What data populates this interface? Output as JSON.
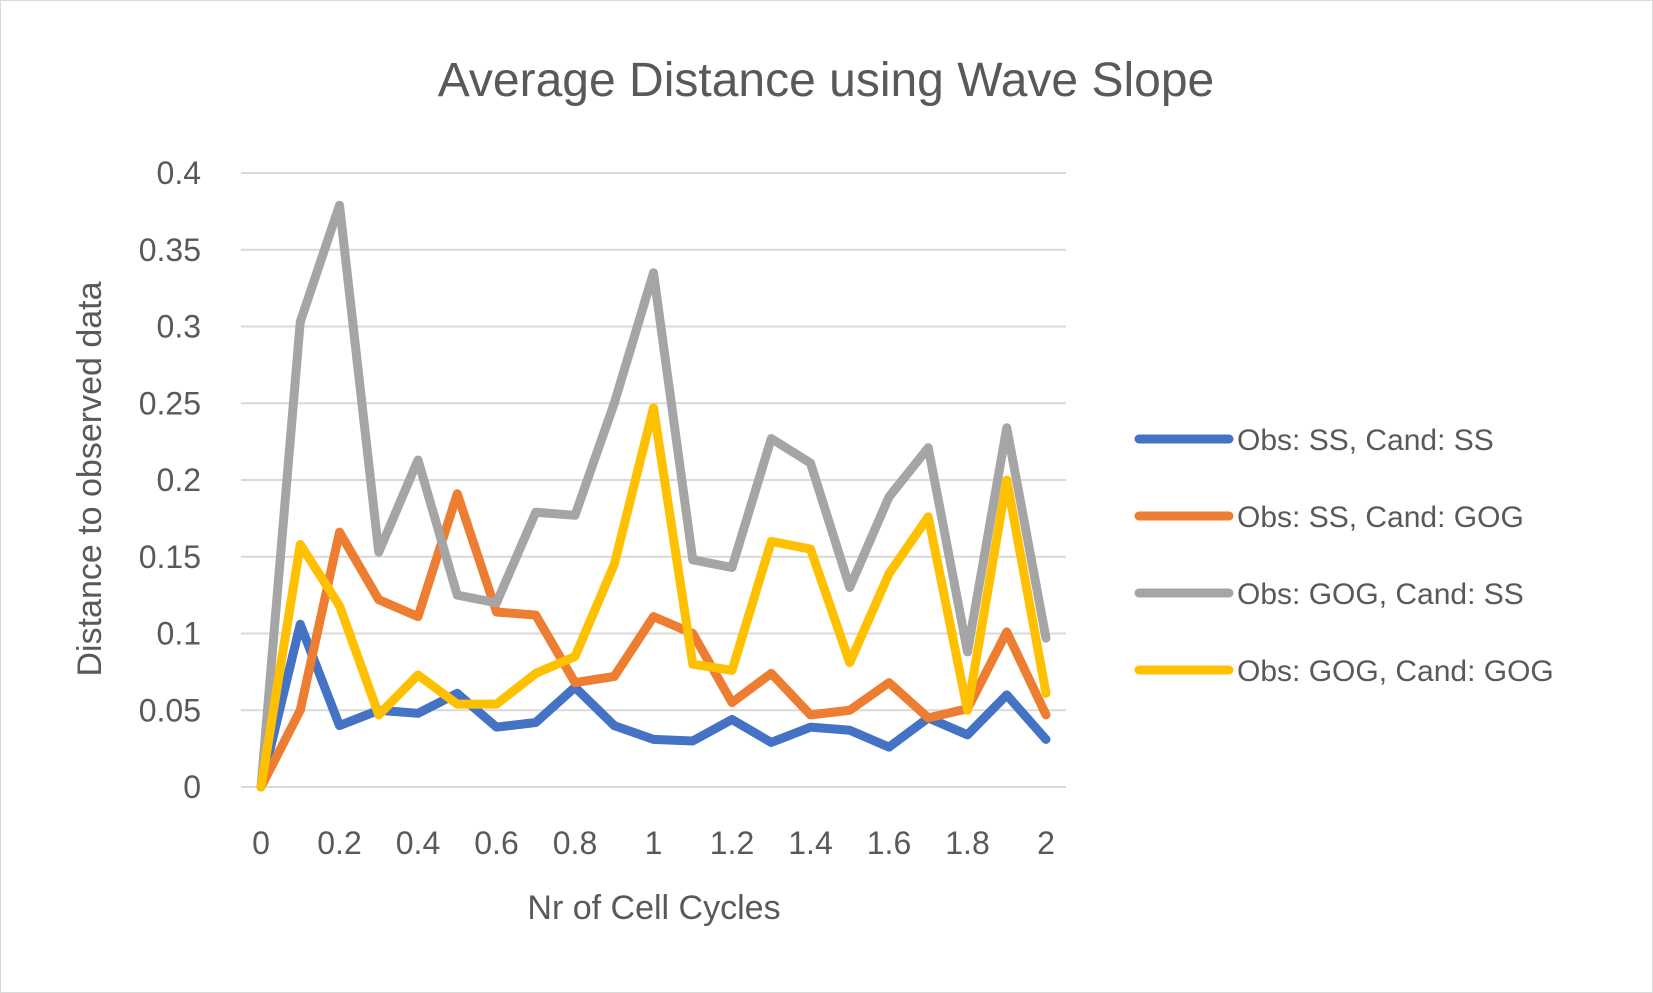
{
  "chart_data": {
    "type": "line",
    "title": "Average Distance using Wave Slope",
    "xlabel": "Nr of Cell Cycles",
    "ylabel": "Distance to observed data",
    "xlim": [
      0,
      2
    ],
    "ylim": [
      0,
      0.4
    ],
    "x_ticks": [
      "0",
      "0.2",
      "0.4",
      "0.6",
      "0.8",
      "1",
      "1.2",
      "1.4",
      "1.6",
      "1.8",
      "2"
    ],
    "y_ticks": [
      "0",
      "0.05",
      "0.1",
      "0.15",
      "0.2",
      "0.25",
      "0.3",
      "0.35",
      "0.4"
    ],
    "grid": "horizontal",
    "legend_position": "right",
    "x": [
      0,
      0.1,
      0.2,
      0.3,
      0.4,
      0.5,
      0.6,
      0.7,
      0.8,
      0.9,
      1.0,
      1.1,
      1.2,
      1.3,
      1.4,
      1.5,
      1.6,
      1.7,
      1.8,
      1.9,
      2.0
    ],
    "series": [
      {
        "name": "Obs: SS, Cand: SS",
        "color": "#4472c4",
        "values": [
          0,
          0.106,
          0.04,
          0.05,
          0.048,
          0.061,
          0.039,
          0.042,
          0.065,
          0.04,
          0.031,
          0.03,
          0.044,
          0.029,
          0.039,
          0.037,
          0.026,
          0.045,
          0.034,
          0.06,
          0.031
        ]
      },
      {
        "name": "Obs: SS, Cand: GOG",
        "color": "#ed7d31",
        "values": [
          0,
          0.05,
          0.166,
          0.122,
          0.111,
          0.191,
          0.114,
          0.112,
          0.068,
          0.072,
          0.111,
          0.1,
          0.055,
          0.074,
          0.047,
          0.05,
          0.068,
          0.045,
          0.051,
          0.101,
          0.047
        ]
      },
      {
        "name": "Obs: GOG, Cand: SS",
        "color": "#a5a5a5",
        "values": [
          0,
          0.303,
          0.379,
          0.153,
          0.213,
          0.125,
          0.12,
          0.179,
          0.177,
          0.25,
          0.335,
          0.148,
          0.143,
          0.227,
          0.211,
          0.13,
          0.189,
          0.221,
          0.088,
          0.234,
          0.097
        ]
      },
      {
        "name": "Obs: GOG, Cand: GOG",
        "color": "#ffc000",
        "values": [
          0,
          0.158,
          0.118,
          0.047,
          0.073,
          0.054,
          0.054,
          0.074,
          0.085,
          0.145,
          0.247,
          0.08,
          0.076,
          0.16,
          0.155,
          0.081,
          0.139,
          0.176,
          0.05,
          0.2,
          0.061
        ]
      }
    ]
  }
}
